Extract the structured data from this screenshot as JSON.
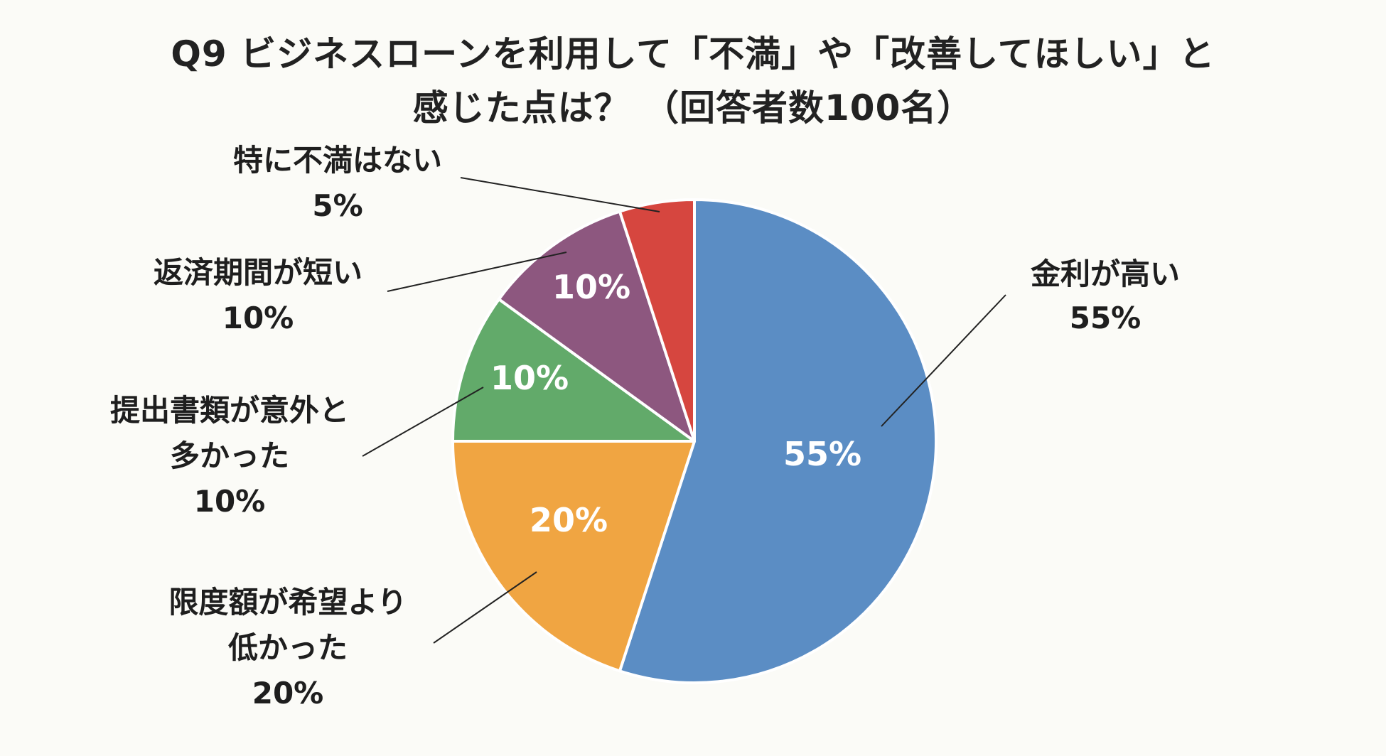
{
  "chart_data": {
    "type": "pie",
    "title_lines": [
      "Q9 ビジネスローンを利用して「不満」や「改善してほしい」と",
      "感じた点は？ （回答者数100名）"
    ],
    "slices": [
      {
        "label_lines": [
          "金利が高い"
        ],
        "value": 55,
        "value_label": "55%",
        "color": "#5b8dc4"
      },
      {
        "label_lines": [
          "限度額が希望より",
          "低かった"
        ],
        "value": 20,
        "value_label": "20%",
        "color": "#f0a542"
      },
      {
        "label_lines": [
          "提出書類が意外と",
          "多かった"
        ],
        "value": 10,
        "value_label": "10%",
        "color": "#62aa6a"
      },
      {
        "label_lines": [
          "返済期間が短い"
        ],
        "value": 10,
        "value_label": "10%",
        "color": "#8d577f"
      },
      {
        "label_lines": [
          "特に不満はない"
        ],
        "value": 5,
        "value_label": "5%",
        "color": "#d6463f"
      }
    ],
    "legend": "none"
  }
}
